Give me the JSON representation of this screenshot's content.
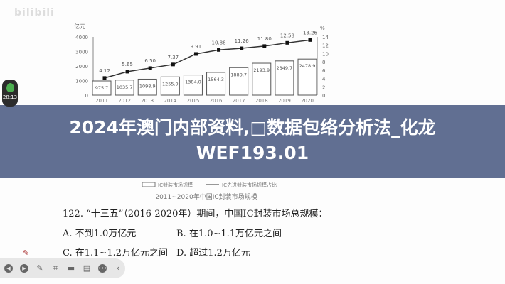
{
  "watermark": "bilibili",
  "timer": "28:13",
  "title_line1": "2024年澳门内部资料,□数据包络分析法_化龙",
  "title_line2": "WEF193.01",
  "question": {
    "stem": "122. “十三五”（2016-2020年）期间，中国IC封装市场总规模：",
    "a": "A. 不到1.0万亿元",
    "b": "B. 在1.0~1.1万亿元之间",
    "c": "C. 在1.1~1.2万亿元之间",
    "d": "D. 超过1.2万亿元"
  },
  "toolbar": [
    "prev-icon",
    "play-icon",
    "pen-icon",
    "screenshot-icon",
    "video-icon",
    "comment-icon",
    "more-icon",
    "collapse-icon"
  ],
  "chart_data": {
    "type": "bar+line",
    "title": "2011~2020年中国IC封装市场规模",
    "ylabel_left": "亿元",
    "ylabel_right": "%",
    "ylim_left": [
      0,
      4000
    ],
    "yticks_left": [
      0,
      1000,
      2000,
      3000,
      4000
    ],
    "ylim_right": [
      0,
      14
    ],
    "yticks_right": [
      0,
      2,
      4,
      6,
      8,
      10,
      12,
      14
    ],
    "categories": [
      "2011",
      "2012",
      "2013",
      "2014",
      "2015",
      "2016",
      "2017",
      "2018",
      "2019",
      "2020"
    ],
    "series": [
      {
        "name": "IC封装市场规模",
        "type": "bar",
        "values": [
          975.7,
          1035.7,
          1098.9,
          1255.9,
          1384.0,
          1564.3,
          1889.7,
          2193.9,
          2349.7,
          2478.9
        ]
      },
      {
        "name": "IC先进封装市场规模占比",
        "type": "line",
        "values": [
          4.12,
          5.65,
          6.5,
          7.37,
          9.91,
          10.88,
          11.26,
          11.8,
          12.58,
          13.26
        ]
      }
    ],
    "colors": {
      "bar_fill": "#ffffff",
      "bar_stroke": "#555555",
      "line": "#333333"
    },
    "grid": false,
    "legend": "bottom"
  }
}
